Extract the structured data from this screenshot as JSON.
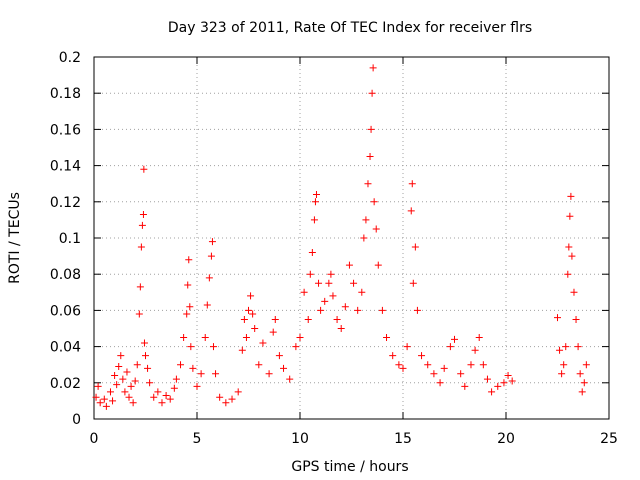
{
  "chart_data": {
    "type": "scatter",
    "title": "Day 323 of 2011, Rate Of TEC Index for receiver flrs",
    "xlabel": "GPS time / hours",
    "ylabel": "ROTI / TECUs",
    "xlim": [
      0,
      25
    ],
    "ylim": [
      0,
      0.2
    ],
    "x_ticks": [
      "0",
      "5",
      "10",
      "15",
      "20",
      "25"
    ],
    "y_ticks": [
      "0",
      "0.02",
      "0.04",
      "0.06",
      "0.08",
      "0.1",
      "0.12",
      "0.14",
      "0.16",
      "0.18",
      "0.2"
    ],
    "grid": true,
    "marker": "+",
    "color": "#ff0000",
    "series": [
      {
        "points": [
          [
            0.1,
            0.012
          ],
          [
            0.2,
            0.018
          ],
          [
            0.3,
            0.009
          ],
          [
            0.5,
            0.011
          ],
          [
            0.6,
            0.007
          ],
          [
            0.8,
            0.015
          ],
          [
            0.9,
            0.01
          ],
          [
            1.0,
            0.024
          ],
          [
            1.1,
            0.019
          ],
          [
            1.2,
            0.029
          ],
          [
            1.3,
            0.035
          ],
          [
            1.4,
            0.022
          ],
          [
            1.5,
            0.015
          ],
          [
            1.6,
            0.026
          ],
          [
            1.7,
            0.012
          ],
          [
            1.8,
            0.018
          ],
          [
            1.9,
            0.009
          ],
          [
            2.0,
            0.021
          ],
          [
            2.1,
            0.03
          ],
          [
            2.2,
            0.058
          ],
          [
            2.25,
            0.073
          ],
          [
            2.3,
            0.095
          ],
          [
            2.35,
            0.107
          ],
          [
            2.4,
            0.113
          ],
          [
            2.42,
            0.138
          ],
          [
            2.45,
            0.042
          ],
          [
            2.5,
            0.035
          ],
          [
            2.6,
            0.028
          ],
          [
            2.7,
            0.02
          ],
          [
            2.9,
            0.012
          ],
          [
            3.1,
            0.015
          ],
          [
            3.3,
            0.009
          ],
          [
            3.5,
            0.013
          ],
          [
            3.7,
            0.011
          ],
          [
            3.9,
            0.017
          ],
          [
            4.0,
            0.022
          ],
          [
            4.2,
            0.03
          ],
          [
            4.35,
            0.045
          ],
          [
            4.5,
            0.058
          ],
          [
            4.55,
            0.074
          ],
          [
            4.6,
            0.088
          ],
          [
            4.65,
            0.062
          ],
          [
            4.7,
            0.04
          ],
          [
            4.8,
            0.028
          ],
          [
            5.0,
            0.018
          ],
          [
            5.2,
            0.025
          ],
          [
            5.4,
            0.045
          ],
          [
            5.5,
            0.063
          ],
          [
            5.6,
            0.078
          ],
          [
            5.7,
            0.09
          ],
          [
            5.75,
            0.098
          ],
          [
            5.8,
            0.04
          ],
          [
            5.9,
            0.025
          ],
          [
            6.1,
            0.012
          ],
          [
            6.4,
            0.009
          ],
          [
            6.7,
            0.011
          ],
          [
            7.0,
            0.015
          ],
          [
            7.2,
            0.038
          ],
          [
            7.3,
            0.055
          ],
          [
            7.4,
            0.045
          ],
          [
            7.5,
            0.06
          ],
          [
            7.6,
            0.068
          ],
          [
            7.7,
            0.058
          ],
          [
            7.8,
            0.05
          ],
          [
            8.0,
            0.03
          ],
          [
            8.2,
            0.042
          ],
          [
            8.5,
            0.025
          ],
          [
            8.7,
            0.048
          ],
          [
            8.8,
            0.055
          ],
          [
            9.0,
            0.035
          ],
          [
            9.2,
            0.028
          ],
          [
            9.5,
            0.022
          ],
          [
            9.8,
            0.04
          ],
          [
            10.0,
            0.045
          ],
          [
            10.2,
            0.07
          ],
          [
            10.4,
            0.055
          ],
          [
            10.5,
            0.08
          ],
          [
            10.6,
            0.092
          ],
          [
            10.7,
            0.11
          ],
          [
            10.75,
            0.12
          ],
          [
            10.8,
            0.124
          ],
          [
            10.9,
            0.075
          ],
          [
            11.0,
            0.06
          ],
          [
            11.2,
            0.065
          ],
          [
            11.4,
            0.075
          ],
          [
            11.5,
            0.08
          ],
          [
            11.6,
            0.068
          ],
          [
            11.8,
            0.055
          ],
          [
            12.0,
            0.05
          ],
          [
            12.2,
            0.062
          ],
          [
            12.4,
            0.085
          ],
          [
            12.6,
            0.075
          ],
          [
            12.8,
            0.06
          ],
          [
            13.0,
            0.07
          ],
          [
            13.1,
            0.1
          ],
          [
            13.2,
            0.11
          ],
          [
            13.3,
            0.13
          ],
          [
            13.4,
            0.145
          ],
          [
            13.45,
            0.16
          ],
          [
            13.5,
            0.18
          ],
          [
            13.55,
            0.194
          ],
          [
            13.6,
            0.12
          ],
          [
            13.7,
            0.105
          ],
          [
            13.8,
            0.085
          ],
          [
            14.0,
            0.06
          ],
          [
            14.2,
            0.045
          ],
          [
            14.5,
            0.035
          ],
          [
            14.8,
            0.03
          ],
          [
            15.0,
            0.028
          ],
          [
            15.2,
            0.04
          ],
          [
            15.4,
            0.115
          ],
          [
            15.45,
            0.13
          ],
          [
            15.5,
            0.075
          ],
          [
            15.6,
            0.095
          ],
          [
            15.7,
            0.06
          ],
          [
            15.9,
            0.035
          ],
          [
            16.2,
            0.03
          ],
          [
            16.5,
            0.025
          ],
          [
            16.8,
            0.02
          ],
          [
            17.0,
            0.028
          ],
          [
            17.3,
            0.04
          ],
          [
            17.5,
            0.044
          ],
          [
            17.8,
            0.025
          ],
          [
            18.0,
            0.018
          ],
          [
            18.3,
            0.03
          ],
          [
            18.5,
            0.038
          ],
          [
            18.7,
            0.045
          ],
          [
            18.9,
            0.03
          ],
          [
            19.1,
            0.022
          ],
          [
            19.3,
            0.015
          ],
          [
            19.6,
            0.018
          ],
          [
            19.9,
            0.02
          ],
          [
            20.1,
            0.024
          ],
          [
            20.3,
            0.021
          ],
          [
            22.5,
            0.056
          ],
          [
            22.6,
            0.038
          ],
          [
            22.7,
            0.025
          ],
          [
            22.8,
            0.03
          ],
          [
            22.9,
            0.04
          ],
          [
            23.0,
            0.08
          ],
          [
            23.05,
            0.095
          ],
          [
            23.1,
            0.112
          ],
          [
            23.15,
            0.123
          ],
          [
            23.2,
            0.09
          ],
          [
            23.3,
            0.07
          ],
          [
            23.4,
            0.055
          ],
          [
            23.5,
            0.04
          ],
          [
            23.6,
            0.025
          ],
          [
            23.7,
            0.015
          ],
          [
            23.8,
            0.02
          ],
          [
            23.9,
            0.03
          ]
        ]
      }
    ]
  }
}
